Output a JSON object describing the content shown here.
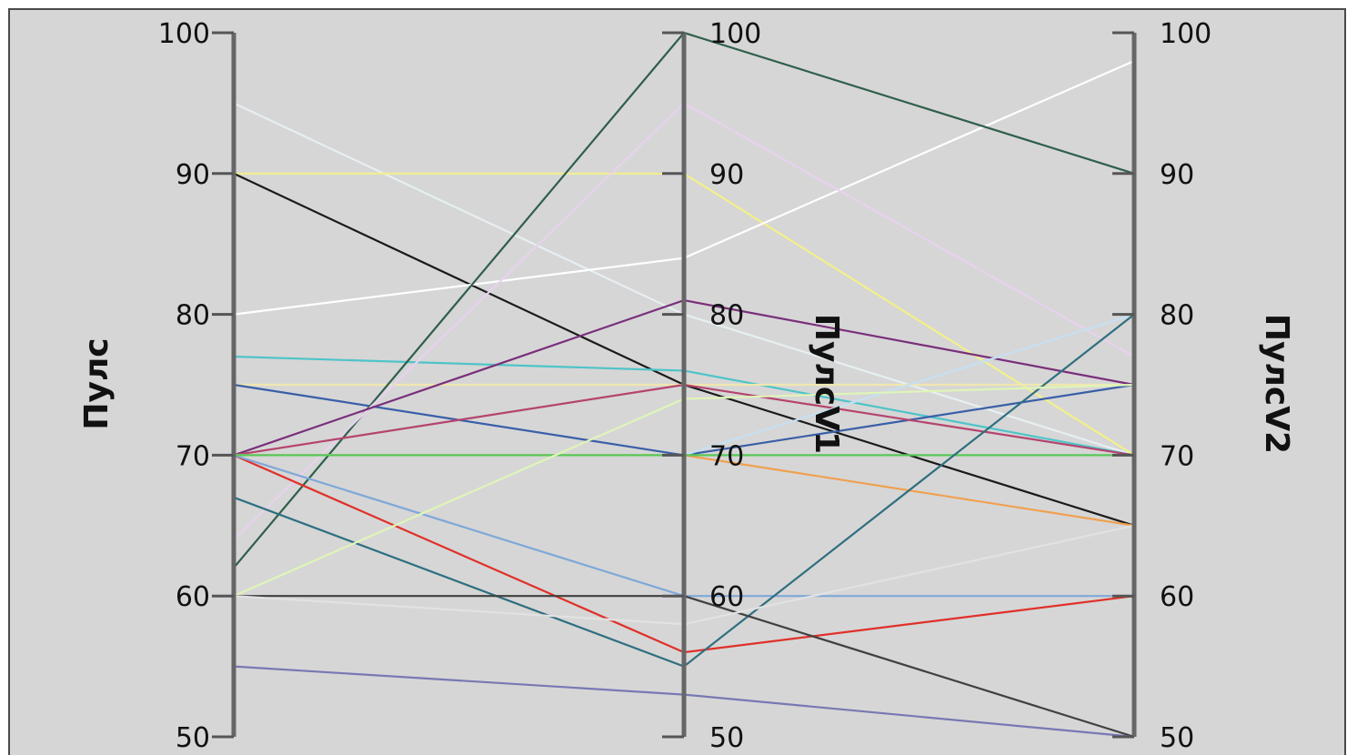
{
  "chart_data": {
    "type": "parallel-coordinates",
    "axes": [
      {
        "label": "Пулс",
        "ticks": [
          "100",
          "90",
          "80",
          "70",
          "60",
          "50"
        ],
        "range": [
          50,
          100
        ]
      },
      {
        "label": "ПулсV1",
        "ticks": [
          "100",
          "90",
          "80",
          "70",
          "60",
          "50"
        ],
        "range": [
          50,
          100
        ]
      },
      {
        "label": "ПулсV2",
        "ticks": [
          "100",
          "90",
          "80",
          "70",
          "60",
          "50"
        ],
        "range": [
          50,
          100
        ]
      }
    ],
    "grid": false,
    "legend": "none",
    "series": [
      {
        "color": "#e6eff2",
        "values": [
          95,
          80,
          70
        ]
      },
      {
        "color": "#f2f08a",
        "values": [
          90,
          90,
          70
        ]
      },
      {
        "color": "#1a1a1a",
        "values": [
          90,
          75,
          65
        ]
      },
      {
        "color": "#ffffff",
        "values": [
          80,
          84,
          98
        ]
      },
      {
        "color": "#4fc4c8",
        "values": [
          77,
          76,
          70
        ]
      },
      {
        "color": "#f0e7b0",
        "values": [
          75,
          75,
          75
        ]
      },
      {
        "color": "#3a5fa8",
        "values": [
          75,
          70,
          75
        ]
      },
      {
        "color": "#2e5f4a",
        "values": [
          62,
          100,
          90
        ]
      },
      {
        "color": "#e7d2ee",
        "values": [
          64,
          95,
          77
        ]
      },
      {
        "color": "#7a2f7a",
        "values": [
          70,
          81,
          75
        ]
      },
      {
        "color": "#b5446e",
        "values": [
          70,
          75,
          70
        ]
      },
      {
        "color": "#e0302a",
        "values": [
          70,
          56,
          60
        ]
      },
      {
        "color": "#7fa8d8",
        "values": [
          70,
          60,
          60
        ]
      },
      {
        "color": "#c6e0f2",
        "values": [
          70,
          70,
          80
        ]
      },
      {
        "color": "#f0a050",
        "values": [
          70,
          70,
          65
        ]
      },
      {
        "color": "#58c858",
        "values": [
          70,
          70,
          70
        ]
      },
      {
        "color": "#2f6f80",
        "values": [
          67,
          55,
          80
        ]
      },
      {
        "color": "#dff5b8",
        "values": [
          60,
          74,
          75
        ]
      },
      {
        "color": "#404040",
        "values": [
          60,
          60,
          50
        ]
      },
      {
        "color": "#e2e2e2",
        "values": [
          60,
          58,
          65
        ]
      },
      {
        "color": "#7878b4",
        "values": [
          55,
          53,
          50
        ]
      }
    ]
  }
}
